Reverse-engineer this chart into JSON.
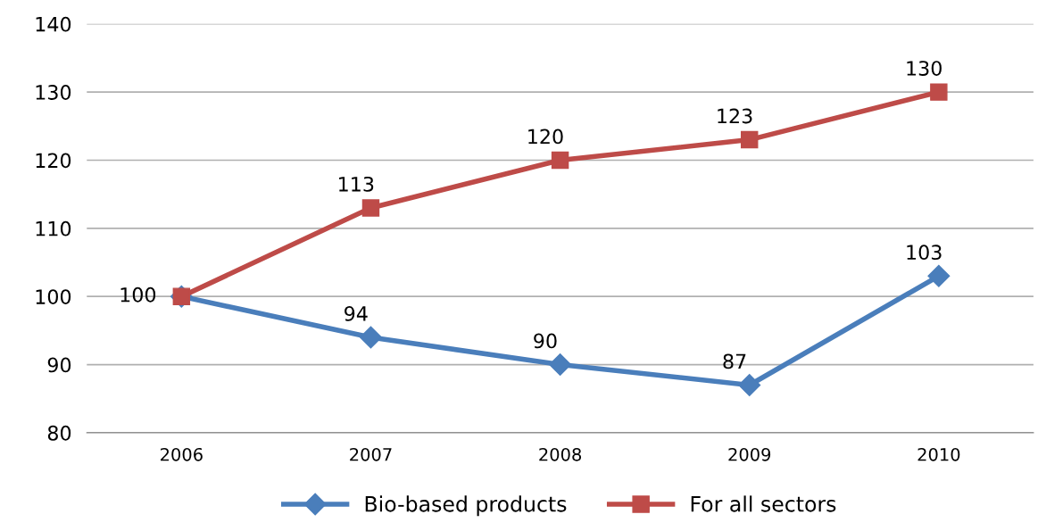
{
  "chart_data": {
    "type": "line",
    "categories": [
      "2006",
      "2007",
      "2008",
      "2009",
      "2010"
    ],
    "series": [
      {
        "name": "Bio-based products",
        "color": "#4a7ebb",
        "marker": "diamond",
        "values": [
          100,
          94,
          90,
          87,
          103
        ],
        "value_labels": [
          "100",
          "94",
          "90",
          "87",
          "103"
        ]
      },
      {
        "name": "For all sectors",
        "color": "#be4b48",
        "marker": "square",
        "values": [
          100,
          113,
          120,
          123,
          130
        ],
        "value_labels": [
          null,
          "113",
          "120",
          "123",
          "130"
        ]
      }
    ],
    "ylim": [
      80,
      140
    ],
    "yticks": [
      80,
      90,
      100,
      110,
      120,
      130,
      140
    ],
    "grid": "y",
    "legend": "bottom",
    "line_style": "solid"
  }
}
